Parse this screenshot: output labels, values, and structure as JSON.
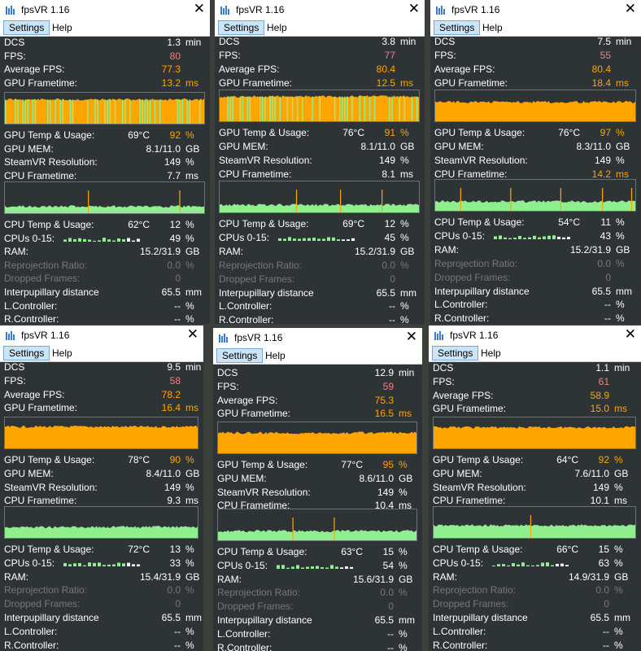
{
  "app_title": "fpsVR 1.16",
  "menu": {
    "settings": "Settings",
    "help": "Help"
  },
  "labels": {
    "app": "DCS",
    "fps": "FPS:",
    "avg_fps": "Average FPS:",
    "gpu_frametime": "GPU Frametime:",
    "gpu_temp": "GPU Temp & Usage:",
    "gpu_mem": "GPU MEM:",
    "steamvr_res": "SteamVR Resolution:",
    "cpu_frametime": "CPU Frametime:",
    "cpu_temp": "CPU Temp & Usage:",
    "cpus": "CPUs 0-15:",
    "ram": "RAM:",
    "reprojection": "Reprojection Ratio:",
    "dropped": "Dropped Frames:",
    "ipd": "Interpupillary distance",
    "lctrl": "L.Controller:",
    "rctrl": "R.Controller:"
  },
  "units": {
    "min": "min",
    "ms": "ms",
    "gb": "GB",
    "pct": "%",
    "mm": "mm"
  },
  "colors": {
    "gpu_graph": "#ffa500",
    "cpu_graph": "#90ee90",
    "gpu_good": "#90ee90",
    "fps_value": "#f08080",
    "orange_value": "#ffa500",
    "cpu_spike": "#ffa500"
  },
  "windows": [
    {
      "time": "1.3",
      "fps": "80",
      "avg_fps": "77.3",
      "gpu_ft": "13.2",
      "gpu_temp": "69°C",
      "gpu_usage": "92",
      "gpu_mem": "8.1/11.0",
      "res": "149",
      "cpu_ft": "7.7",
      "cpu_temp": "62°C",
      "cpu_usage": "12",
      "cpus_pct": "49",
      "ram": "15.2/31.9",
      "reproj": "0.0",
      "dropped": "0",
      "ipd": "65.5",
      "lctrl": "--",
      "rctrl": "--",
      "gpu_load": 0.78,
      "gpu_style": "mixed",
      "cpu_load": 0.22
    },
    {
      "time": "3.8",
      "fps": "77",
      "avg_fps": "80.4",
      "gpu_ft": "12.5",
      "gpu_temp": "76°C",
      "gpu_usage": "91",
      "gpu_mem": "8.1/11.0",
      "res": "149",
      "cpu_ft": "8.1",
      "cpu_temp": "69°C",
      "cpu_usage": "12",
      "cpus_pct": "45",
      "ram": "15.2/31.9",
      "reproj": "0.0",
      "dropped": "0",
      "ipd": "65.5",
      "lctrl": "--",
      "rctrl": "--",
      "gpu_load": 0.8,
      "gpu_style": "mixed",
      "cpu_load": 0.24
    },
    {
      "time": "7.5",
      "fps": "55",
      "avg_fps": "80.4",
      "gpu_ft": "18.4",
      "gpu_temp": "76°C",
      "gpu_usage": "97",
      "gpu_mem": "8.3/11.0",
      "res": "149",
      "cpu_ft": "14.2",
      "cpu_temp": "54°C",
      "cpu_usage": "11",
      "cpus_pct": "43",
      "ram": "15.2/31.9",
      "reproj": "0.0",
      "dropped": "0",
      "ipd": "65.5",
      "lctrl": "--",
      "rctrl": "--",
      "gpu_load": 0.62,
      "gpu_style": "solid",
      "cpu_load": 0.3
    },
    {
      "time": "9.5",
      "fps": "58",
      "avg_fps": "78.2",
      "gpu_ft": "16.4",
      "gpu_temp": "78°C",
      "gpu_usage": "90",
      "gpu_mem": "8.4/11.0",
      "res": "149",
      "cpu_ft": "9.3",
      "cpu_temp": "72°C",
      "cpu_usage": "13",
      "cpus_pct": "33",
      "ram": "15.4/31.9",
      "reproj": "0.0",
      "dropped": "0",
      "ipd": "65.5",
      "lctrl": "--",
      "rctrl": "--",
      "gpu_load": 0.7,
      "gpu_style": "solid",
      "cpu_load": 0.35
    },
    {
      "time": "12.9",
      "fps": "59",
      "avg_fps": "75.3",
      "gpu_ft": "16.5",
      "gpu_temp": "77°C",
      "gpu_usage": "95",
      "gpu_mem": "8.6/11.0",
      "res": "149",
      "cpu_ft": "10.4",
      "cpu_temp": "63°C",
      "cpu_usage": "15",
      "cpus_pct": "54",
      "ram": "15.6/31.9",
      "reproj": "0.0",
      "dropped": "0",
      "ipd": "65.5",
      "lctrl": "--",
      "rctrl": "--",
      "gpu_load": 0.66,
      "gpu_style": "solid",
      "cpu_load": 0.3
    },
    {
      "time": "1.1",
      "fps": "61",
      "avg_fps": "58.9",
      "gpu_ft": "15.0",
      "gpu_temp": "64°C",
      "gpu_usage": "92",
      "gpu_mem": "7.6/11.0",
      "res": "149",
      "cpu_ft": "10.1",
      "cpu_temp": "66°C",
      "cpu_usage": "15",
      "cpus_pct": "63",
      "ram": "14.9/31.9",
      "reproj": "0.0",
      "dropped": "0",
      "ipd": "65.5",
      "lctrl": "--",
      "rctrl": "--",
      "gpu_load": 0.68,
      "gpu_style": "solid",
      "cpu_load": 0.4
    }
  ]
}
